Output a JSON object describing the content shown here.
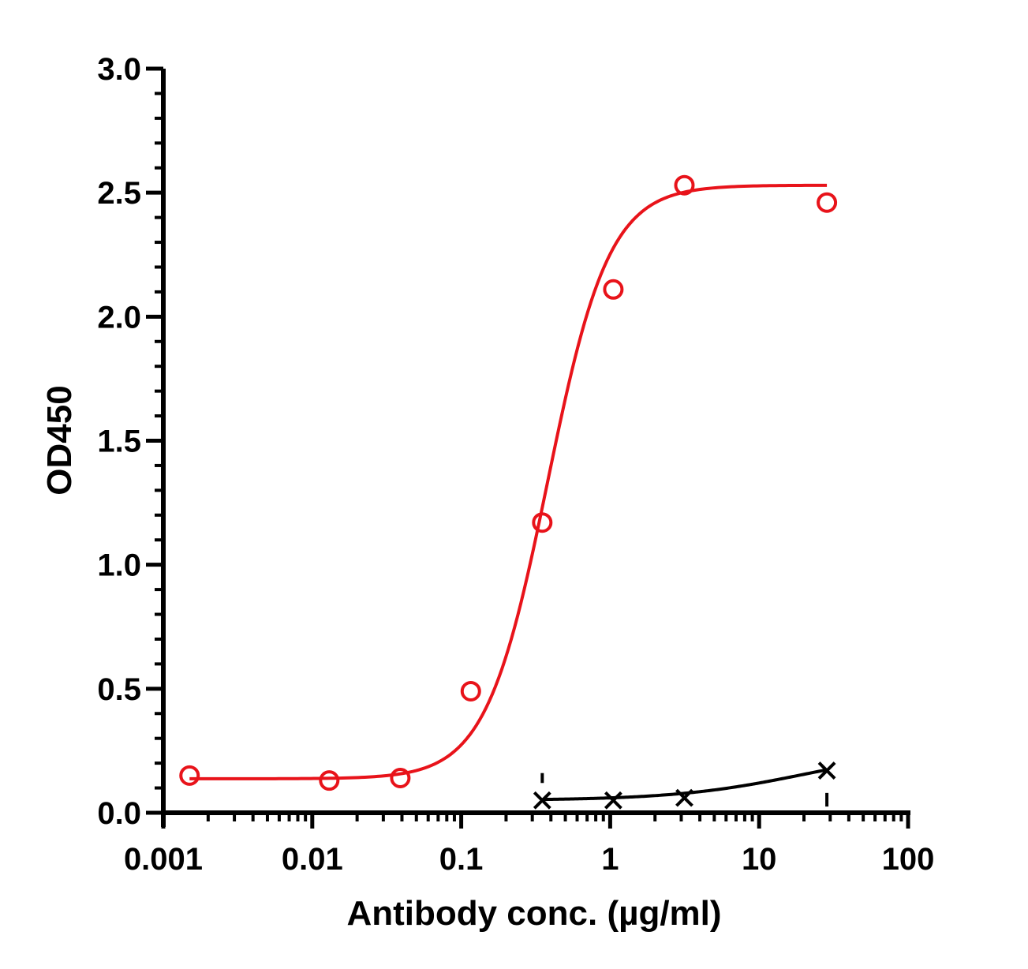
{
  "chart_data": {
    "type": "scatter",
    "title": "",
    "xlabel": "Antibody conc. (µg/ml)",
    "ylabel": "OD450",
    "xscale": "log",
    "xlim": [
      0.001,
      100
    ],
    "ylim": [
      0,
      3.0
    ],
    "x_ticks": [
      0.001,
      0.01,
      0.1,
      1,
      10,
      100
    ],
    "x_tick_labels": [
      "0.001",
      "0.01",
      "0.1",
      "1",
      "10",
      "100"
    ],
    "y_ticks": [
      0,
      0.5,
      1.0,
      1.5,
      2.0,
      2.5,
      3.0
    ],
    "y_tick_labels": [
      "0.0",
      "0.5",
      "1.0",
      "1.5",
      "2.0",
      "2.5",
      "3.0"
    ],
    "grid": false,
    "legend": "none",
    "series": [
      {
        "marker": "circle",
        "color": "#e8131a",
        "x": [
          0.0015,
          0.013,
          0.039,
          0.116,
          0.35,
          1.05,
          3.15,
          28.5
        ],
        "y": [
          0.15,
          0.13,
          0.14,
          0.49,
          1.17,
          2.11,
          2.53,
          2.46
        ],
        "fit": {
          "model": "4PL",
          "bottom": 0.137,
          "top": 2.53,
          "ec50": 0.38,
          "hill": 2.1,
          "x_range": [
            0.0015,
            28.5
          ]
        }
      },
      {
        "marker": "x",
        "color": "#000000",
        "x": [
          0.35,
          1.05,
          3.15,
          28.5
        ],
        "y": [
          0.05,
          0.05,
          0.06,
          0.17
        ],
        "fit": {
          "model": "4PL",
          "bottom": 0.05,
          "top": 0.26,
          "ec50": 20,
          "hill": 1.0,
          "x_range": [
            0.35,
            28.5
          ]
        }
      }
    ]
  }
}
